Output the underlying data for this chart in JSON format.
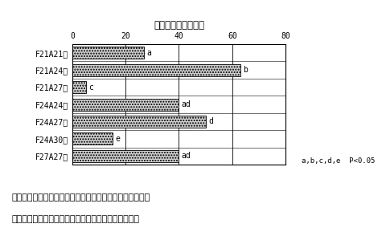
{
  "categories": [
    "F21A21区",
    "F21A24区",
    "F21A27区",
    "F24A24区",
    "F24A27区",
    "F24A30区",
    "F27A27区"
  ],
  "values": [
    27.0,
    63.0,
    5.0,
    40.0,
    50.0,
    15.0,
    40.0
  ],
  "labels": [
    "a",
    "b",
    "c",
    "ad",
    "d",
    "e",
    "ad"
  ],
  "xlabel": "胚盤胞発生率（％）",
  "xlim": [
    0,
    80
  ],
  "xticks": [
    0,
    20,
    40,
    60,
    80
  ],
  "bar_facecolor": "#d0d0d0",
  "bar_hatch": ".....",
  "bar_edgecolor": "#000000",
  "background_color": "#ffffff",
  "note": "a,b,c,d,e  P<0.05",
  "caption_line1": "図２　様々な細胞融合と化学的活性化処理のタイミングで",
  "caption_line2": "作出したウシ線維芽細胞由来核移植胚の胚盤胞発生率"
}
